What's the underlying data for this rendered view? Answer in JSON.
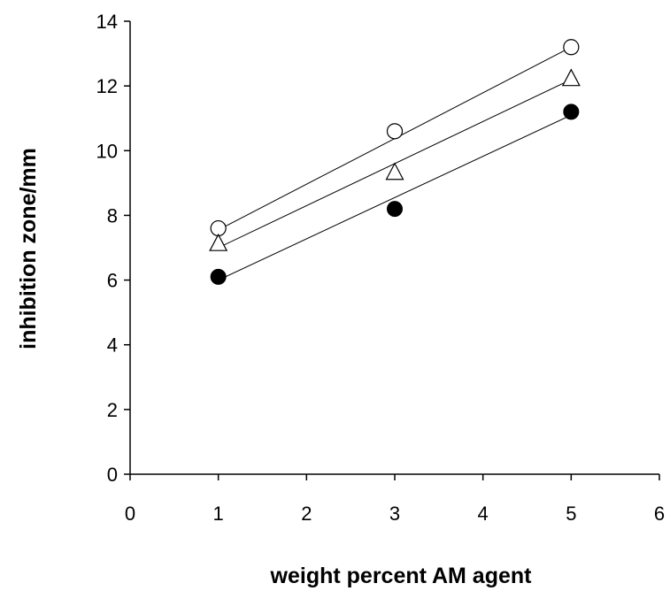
{
  "chart_data": {
    "type": "scatter",
    "title": "",
    "xlabel": "weight percent AM agent",
    "ylabel": "inhibition zone/mm",
    "xlim": [
      0,
      6
    ],
    "ylim": [
      0,
      14
    ],
    "xticks": [
      0,
      1,
      2,
      3,
      4,
      5,
      6
    ],
    "yticks": [
      0,
      2,
      4,
      6,
      8,
      10,
      12,
      14
    ],
    "grid": false,
    "legend": "none",
    "series": [
      {
        "marker": "open-circle",
        "x": [
          1,
          3,
          5
        ],
        "y": [
          7.6,
          10.6,
          13.2
        ],
        "fit": [
          7.55,
          13.2
        ]
      },
      {
        "marker": "open-triangle",
        "x": [
          1,
          3,
          5
        ],
        "y": [
          7.1,
          9.3,
          12.2
        ],
        "fit": [
          7.0,
          12.2
        ]
      },
      {
        "marker": "filled-circle",
        "x": [
          1,
          3,
          5
        ],
        "y": [
          6.1,
          8.2,
          11.2
        ],
        "fit": [
          6.0,
          11.1
        ]
      }
    ]
  }
}
